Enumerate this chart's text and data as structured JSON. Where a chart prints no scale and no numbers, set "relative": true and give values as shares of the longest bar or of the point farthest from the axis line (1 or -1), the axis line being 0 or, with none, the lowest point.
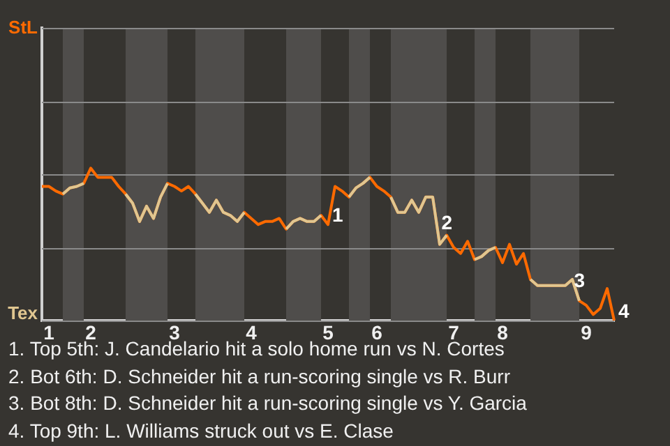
{
  "chart_data": {
    "type": "line",
    "relative": true,
    "categories": [
      null,
      "1",
      null,
      null,
      null,
      null,
      null,
      "2",
      null,
      null,
      null,
      null,
      null,
      null,
      null,
      null,
      null,
      null,
      null,
      "3",
      null,
      null,
      null,
      null,
      null,
      null,
      null,
      null,
      null,
      null,
      "4",
      null,
      null,
      null,
      null,
      null,
      null,
      null,
      null,
      null,
      null,
      "5",
      null,
      null,
      null,
      null,
      null,
      null,
      "6",
      null,
      null,
      null,
      null,
      null,
      null,
      null,
      null,
      null,
      null,
      "7",
      null,
      null,
      null,
      null,
      null,
      null,
      "8",
      null,
      null,
      null,
      null,
      null,
      null,
      null,
      null,
      null,
      null,
      null,
      "9",
      null,
      null,
      null,
      null
    ],
    "series": [
      {
        "name": "StL",
        "color": "#ff6a00",
        "values": [
          0.88,
          0.88,
          0.85,
          0.83,
          0.87,
          0.88,
          0.9,
          1,
          0.94,
          0.94,
          0.94,
          0.88,
          0.83,
          0.77,
          0.65,
          0.75,
          0.67,
          0.81,
          0.9,
          0.88,
          0.85,
          0.88,
          0.83,
          0.77,
          0.71,
          0.79,
          0.71,
          0.69,
          0.65,
          0.71,
          0.67,
          0.63,
          0.65,
          0.65,
          0.67,
          0.6,
          0.65,
          0.67,
          0.65,
          0.65,
          0.69,
          0.63,
          0.88,
          0.85,
          0.81,
          0.87,
          0.9,
          0.94,
          0.88,
          0.85,
          0.81,
          0.71,
          0.71,
          0.79,
          0.71,
          0.81,
          0.81,
          0.5,
          0.56,
          0.48,
          0.44,
          0.52,
          0.4,
          0.42,
          0.46,
          0.48,
          0.38,
          0.5,
          0.37,
          0.44,
          0.27,
          0.23,
          0.23,
          0.23,
          0.23,
          0.23,
          0.27,
          0.13,
          0.1,
          0.04,
          0.08,
          0.21,
          0
        ]
      },
      {
        "name": "Tex",
        "color": "#e0c690",
        "values": [
          null,
          null,
          null,
          0.83,
          0.87,
          0.88,
          0.9,
          null,
          null,
          null,
          null,
          null,
          0.83,
          0.77,
          0.65,
          0.75,
          0.67,
          0.81,
          0.9,
          null,
          null,
          null,
          0.83,
          0.77,
          0.71,
          0.79,
          0.71,
          0.69,
          0.65,
          0.71,
          null,
          null,
          null,
          null,
          null,
          0.6,
          0.65,
          0.67,
          0.65,
          0.65,
          0.69,
          null,
          null,
          null,
          0.81,
          0.87,
          0.9,
          0.94,
          null,
          null,
          0.81,
          0.71,
          0.71,
          0.79,
          0.71,
          0.81,
          0.81,
          0.5,
          0.56,
          null,
          null,
          null,
          0.4,
          0.42,
          0.46,
          0.48,
          null,
          null,
          null,
          null,
          0.27,
          0.23,
          0.23,
          0.23,
          0.23,
          0.23,
          0.27,
          0.13,
          null,
          null,
          null,
          null,
          null
        ]
      }
    ],
    "ylim": [
      0,
      1.92
    ],
    "grid": "y",
    "legend": false,
    "annotations": [
      {
        "text": "1",
        "x": "5",
        "y": 0.63
      },
      {
        "text": "2",
        "x": "7",
        "y": 0.48
      },
      {
        "text": "3",
        "x": "9",
        "y": 0.1
      },
      "4",
      "1. Top 5th: J. Candelario hit a solo home run vs N. Cortes",
      "2. Bot 6th: D. Schneider hit a run-scoring single vs R. Burr",
      "3. Bot 8th: D. Schneider hit a run-scoring single vs Y. Garcia",
      "4. Top 9th: L. Williams struck out vs E. Clase"
    ]
  }
}
